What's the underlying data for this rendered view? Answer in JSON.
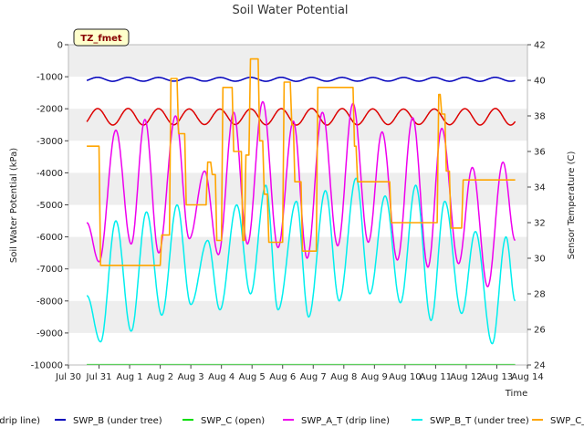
{
  "chart_data": {
    "type": "line",
    "title": "Soil Water Potential",
    "xlabel": "Time",
    "ylabel": "Soil Water Potential (kPa)",
    "y2label": "Sensor Temperature (C)",
    "annotation": "TZ_fmet",
    "grid": "horizontal bands",
    "x_ticks": [
      "Jul 30",
      "Jul 31",
      "Aug 1",
      "Aug 2",
      "Aug 3",
      "Aug 4",
      "Aug 5",
      "Aug 6",
      "Aug 7",
      "Aug 8",
      "Aug 9",
      "Aug 10",
      "Aug 11",
      "Aug 12",
      "Aug 13",
      "Aug 14"
    ],
    "xlim_days": [
      0,
      15
    ],
    "ylim": [
      -10000,
      0
    ],
    "y_ticks": [
      0,
      -1000,
      -2000,
      -3000,
      -4000,
      -5000,
      -6000,
      -7000,
      -8000,
      -9000,
      -10000
    ],
    "y2lim": [
      24,
      42
    ],
    "y2_ticks": [
      24,
      26,
      28,
      30,
      32,
      34,
      36,
      38,
      40,
      42
    ],
    "legend_position": "bottom",
    "series": [
      {
        "name": "SWP_A (drip line)",
        "legend_text": "drip line)",
        "color": "#dd0000",
        "axis": "left",
        "style": "sine",
        "base": -2250,
        "amp": 250,
        "start": 0.6,
        "end": 14.6,
        "phase": 1.95
      },
      {
        "name": "SWP_B (under tree)",
        "color": "#0000bb",
        "axis": "left",
        "style": "sine",
        "base": -1080,
        "amp": 60,
        "start": 0.6,
        "end": 14.6,
        "phase": 1.95
      },
      {
        "name": "SWP_C (open)",
        "color": "#00dd00",
        "axis": "left",
        "style": "flat",
        "value": -9990,
        "start": 0.6,
        "end": 14.6
      },
      {
        "name": "SWP_A_T (drip line)",
        "color": "#ee00ee",
        "axis": "right",
        "style": "peaks",
        "peaks": [
          [
            1.55,
            37.2
          ],
          [
            2.5,
            37.8
          ],
          [
            3.5,
            38.0
          ],
          [
            4.45,
            34.9
          ],
          [
            5.4,
            38.2
          ],
          [
            6.35,
            38.8
          ],
          [
            7.35,
            37.7
          ],
          [
            8.3,
            38.2
          ],
          [
            9.3,
            38.7
          ],
          [
            10.25,
            37.1
          ],
          [
            11.25,
            37.9
          ],
          [
            12.2,
            37.3
          ],
          [
            13.2,
            35.1
          ],
          [
            14.2,
            35.4
          ]
        ],
        "troughs": [
          [
            0.6,
            32.0
          ],
          [
            1.0,
            29.8
          ],
          [
            2.05,
            30.8
          ],
          [
            2.95,
            30.3
          ],
          [
            3.95,
            31.1
          ],
          [
            4.9,
            30.2
          ],
          [
            5.85,
            30.8
          ],
          [
            6.85,
            30.6
          ],
          [
            7.8,
            30.0
          ],
          [
            8.8,
            30.7
          ],
          [
            9.8,
            30.9
          ],
          [
            10.75,
            29.9
          ],
          [
            11.75,
            29.5
          ],
          [
            12.75,
            29.7
          ],
          [
            13.7,
            28.4
          ],
          [
            14.6,
            31.0
          ]
        ]
      },
      {
        "name": "SWP_B_T (under tree)",
        "color": "#00eeee",
        "axis": "right",
        "style": "peaks",
        "peaks": [
          [
            1.55,
            32.1
          ],
          [
            2.55,
            32.6
          ],
          [
            3.55,
            33.0
          ],
          [
            4.55,
            31.0
          ],
          [
            5.5,
            33.0
          ],
          [
            6.45,
            34.1
          ],
          [
            7.45,
            33.2
          ],
          [
            8.4,
            33.8
          ],
          [
            9.4,
            34.5
          ],
          [
            10.35,
            33.5
          ],
          [
            11.35,
            34.1
          ],
          [
            12.3,
            33.2
          ],
          [
            13.3,
            31.5
          ],
          [
            14.3,
            31.2
          ]
        ],
        "troughs": [
          [
            0.6,
            27.9
          ],
          [
            1.05,
            25.3
          ],
          [
            2.05,
            25.9
          ],
          [
            3.05,
            26.8
          ],
          [
            4.0,
            27.4
          ],
          [
            4.95,
            27.1
          ],
          [
            5.95,
            28.0
          ],
          [
            6.85,
            27.1
          ],
          [
            7.85,
            26.7
          ],
          [
            8.85,
            27.6
          ],
          [
            9.85,
            28.0
          ],
          [
            10.85,
            27.5
          ],
          [
            11.85,
            26.5
          ],
          [
            12.85,
            26.9
          ],
          [
            13.85,
            25.2
          ],
          [
            14.6,
            27.6
          ]
        ]
      },
      {
        "name": "SWP_C_T (open)",
        "legend_text": "SWP_C_T (open)",
        "color": "#ffa500",
        "axis": "right",
        "style": "steps",
        "points": [
          [
            0.6,
            36.3
          ],
          [
            1.0,
            36.3
          ],
          [
            1.05,
            29.6
          ],
          [
            3.0,
            29.6
          ],
          [
            3.05,
            31.3
          ],
          [
            3.3,
            31.3
          ],
          [
            3.35,
            40.1
          ],
          [
            3.55,
            40.1
          ],
          [
            3.6,
            37.0
          ],
          [
            3.8,
            37.0
          ],
          [
            3.85,
            33.0
          ],
          [
            4.5,
            33.0
          ],
          [
            4.55,
            35.4
          ],
          [
            4.65,
            35.4
          ],
          [
            4.7,
            34.7
          ],
          [
            4.8,
            34.7
          ],
          [
            4.85,
            31.0
          ],
          [
            5.0,
            31.0
          ],
          [
            5.05,
            39.6
          ],
          [
            5.35,
            39.6
          ],
          [
            5.4,
            36.0
          ],
          [
            5.65,
            36.0
          ],
          [
            5.7,
            31.0
          ],
          [
            5.75,
            31.0
          ],
          [
            5.8,
            35.8
          ],
          [
            5.9,
            35.8
          ],
          [
            5.95,
            41.2
          ],
          [
            6.2,
            41.2
          ],
          [
            6.25,
            36.6
          ],
          [
            6.35,
            36.6
          ],
          [
            6.4,
            33.6
          ],
          [
            6.5,
            33.6
          ],
          [
            6.55,
            30.9
          ],
          [
            7.0,
            30.9
          ],
          [
            7.05,
            39.9
          ],
          [
            7.25,
            39.9
          ],
          [
            7.3,
            37.5
          ],
          [
            7.35,
            37.5
          ],
          [
            7.4,
            34.3
          ],
          [
            7.6,
            34.3
          ],
          [
            7.65,
            30.4
          ],
          [
            8.1,
            30.4
          ],
          [
            8.15,
            39.6
          ],
          [
            9.3,
            39.6
          ],
          [
            9.35,
            36.3
          ],
          [
            9.4,
            36.3
          ],
          [
            9.45,
            34.3
          ],
          [
            10.5,
            34.3
          ],
          [
            10.55,
            32.0
          ],
          [
            12.05,
            32.0
          ],
          [
            12.1,
            39.2
          ],
          [
            12.15,
            39.2
          ],
          [
            12.2,
            38.1
          ],
          [
            12.3,
            38.1
          ],
          [
            12.35,
            34.9
          ],
          [
            12.45,
            34.9
          ],
          [
            12.5,
            31.7
          ],
          [
            12.85,
            31.7
          ],
          [
            12.9,
            34.4
          ],
          [
            14.6,
            34.4
          ]
        ]
      }
    ]
  }
}
